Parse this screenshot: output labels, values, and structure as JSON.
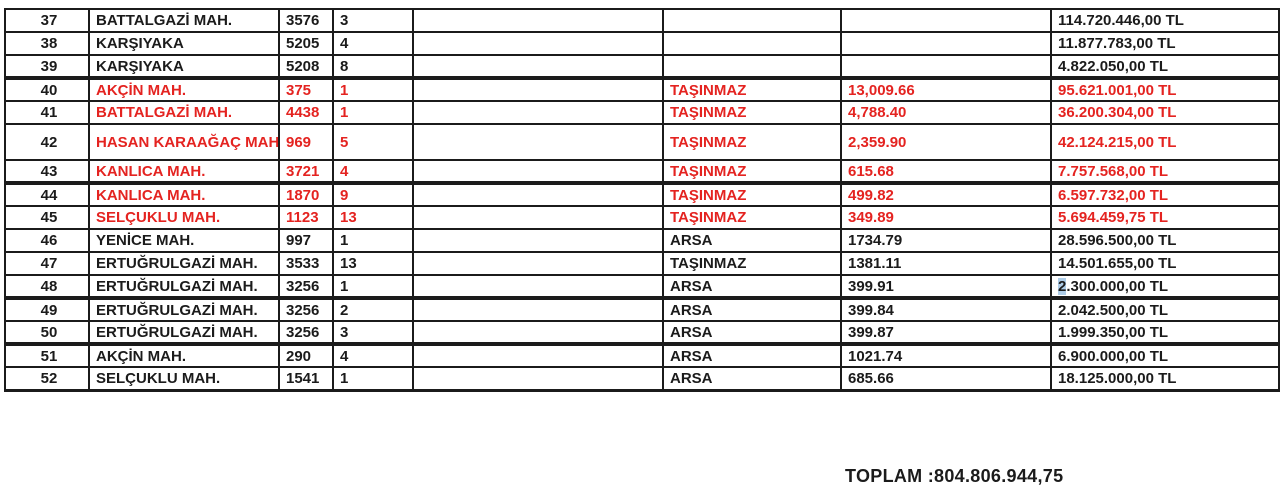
{
  "colors": {
    "black_text": "#1b1b1b",
    "red_text": "#e42320",
    "selection_highlight": "#aecde8"
  },
  "table": {
    "rows": [
      {
        "no": "37",
        "name": "BATTALGAZİ MAH.",
        "ada": "3576",
        "parsel": "3",
        "type": "",
        "area": "",
        "amount": "114.720.446,00 TL",
        "red": false
      },
      {
        "no": "38",
        "name": "KARŞIYAKA",
        "ada": "5205",
        "parsel": "4",
        "type": "",
        "area": "",
        "amount": "11.877.783,00 TL",
        "red": false
      },
      {
        "no": "39",
        "name": "KARŞIYAKA",
        "ada": "5208",
        "parsel": "8",
        "type": "",
        "area": "",
        "amount": "4.822.050,00 TL",
        "red": false
      },
      {
        "no": "40",
        "name": "AKÇİN MAH.",
        "ada": "375",
        "parsel": "1",
        "type": "TAŞINMAZ",
        "area": "13,009.66",
        "amount": "95.621.001,00 TL",
        "red": true,
        "thick_top": true
      },
      {
        "no": "41",
        "name": "BATTALGAZİ MAH.",
        "ada": "4438",
        "parsel": "1",
        "type": "TAŞINMAZ",
        "area": "4,788.40",
        "amount": "36.200.304,00 TL",
        "red": true
      },
      {
        "no": "42",
        "name": "HASAN KARAAĞAÇ MAH.",
        "ada": "969",
        "parsel": "5",
        "type": "TAŞINMAZ",
        "area": "2,359.90",
        "amount": "42.124.215,00 TL",
        "red": true,
        "tall": true
      },
      {
        "no": "43",
        "name": "KANLICA MAH.",
        "ada": "3721",
        "parsel": "4",
        "type": "TAŞINMAZ",
        "area": "615.68",
        "amount": "7.757.568,00 TL",
        "red": true
      },
      {
        "no": "44",
        "name": "KANLICA MAH.",
        "ada": "1870",
        "parsel": "9",
        "type": "TAŞINMAZ",
        "area": "499.82",
        "amount": "6.597.732,00 TL",
        "red": true,
        "thick_top": true
      },
      {
        "no": "45",
        "name": "SELÇUKLU MAH.",
        "ada": "1123",
        "parsel": "13",
        "type": "TAŞINMAZ",
        "area": "349.89",
        "amount": "5.694.459,75 TL",
        "red": true
      },
      {
        "no": "46",
        "name": "YENİCE MAH.",
        "ada": "997",
        "parsel": "1",
        "type": "ARSA",
        "area": "1734.79",
        "amount": "28.596.500,00 TL",
        "red": false
      },
      {
        "no": "47",
        "name": "ERTUĞRULGAZİ MAH.",
        "ada": "3533",
        "parsel": "13",
        "type": "TAŞINMAZ",
        "area": "1381.11",
        "amount": "14.501.655,00 TL",
        "red": false
      },
      {
        "no": "48",
        "name": "ERTUĞRULGAZİ MAH.",
        "ada": "3256",
        "parsel": "1",
        "type": "ARSA",
        "area": "399.91",
        "amount": "2.300.000,00 TL",
        "red": false,
        "amount_highlight_chars": 1
      },
      {
        "no": "49",
        "name": "ERTUĞRULGAZİ MAH.",
        "ada": "3256",
        "parsel": "2",
        "type": "ARSA",
        "area": "399.84",
        "amount": "2.042.500,00 TL",
        "red": false,
        "thick_top": true
      },
      {
        "no": "50",
        "name": "ERTUĞRULGAZİ MAH.",
        "ada": "3256",
        "parsel": "3",
        "type": "ARSA",
        "area": "399.87",
        "amount": "1.999.350,00 TL",
        "red": false
      },
      {
        "no": "51",
        "name": "AKÇİN MAH.",
        "ada": "290",
        "parsel": "4",
        "type": "ARSA",
        "area": "1021.74",
        "amount": "6.900.000,00 TL",
        "red": false,
        "thick_top": true
      },
      {
        "no": "52",
        "name": "SELÇUKLU MAH.",
        "ada": "1541",
        "parsel": "1",
        "type": "ARSA",
        "area": "685.66",
        "amount": "18.125.000,00 TL",
        "red": false
      }
    ]
  },
  "footer": {
    "total": "TOPLAM :804.806.944,75"
  }
}
